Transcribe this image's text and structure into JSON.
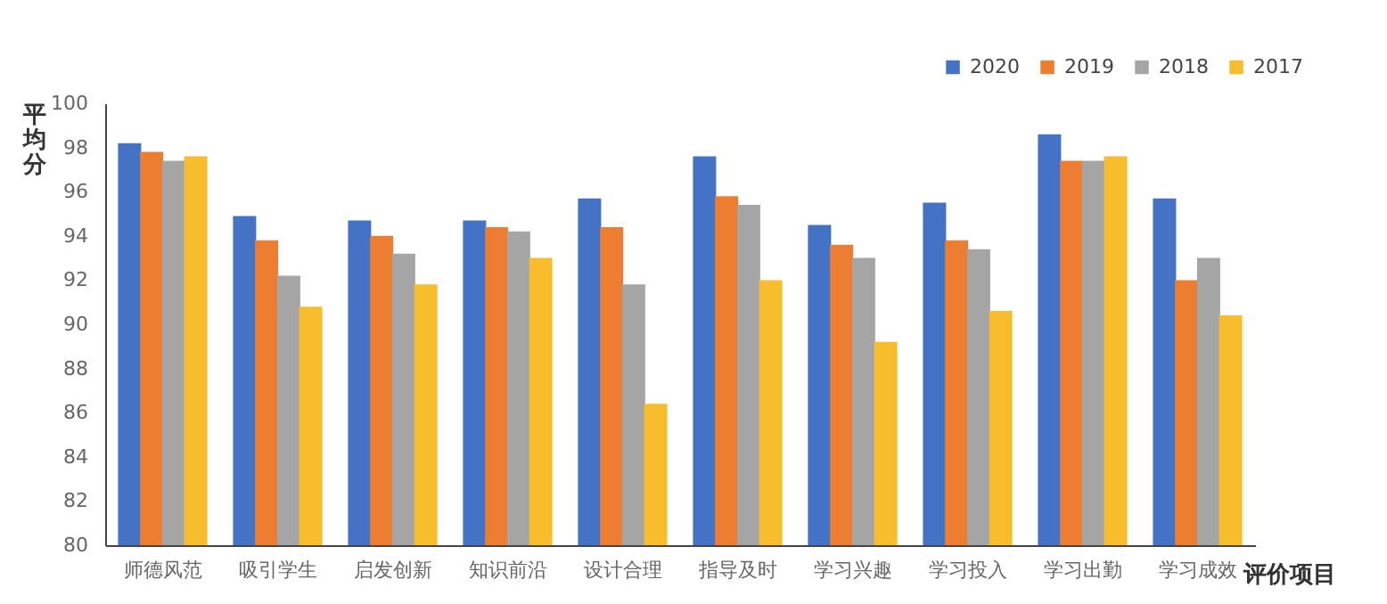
{
  "chart_data": {
    "type": "bar",
    "xlabel": "评价项目",
    "ylabel": "平均分",
    "categories": [
      "师德风范",
      "吸引学生",
      "启发创新",
      "知识前沿",
      "设计合理",
      "指导及时",
      "学习兴趣",
      "学习投入",
      "学习出勤",
      "学习成效"
    ],
    "series": [
      {
        "name": "2020",
        "color": "#4472c4",
        "values": [
          98.2,
          94.9,
          94.7,
          94.7,
          95.7,
          97.6,
          94.5,
          95.5,
          98.6,
          95.7
        ]
      },
      {
        "name": "2019",
        "color": "#ed7d31",
        "values": [
          97.8,
          93.8,
          94.0,
          94.4,
          94.4,
          95.8,
          93.6,
          93.8,
          97.4,
          92.0
        ]
      },
      {
        "name": "2018",
        "color": "#a5a5a5",
        "values": [
          97.4,
          92.2,
          93.2,
          94.2,
          91.8,
          95.4,
          93.0,
          93.4,
          97.4,
          93.0
        ]
      },
      {
        "name": "2017",
        "color": "#f8bd2c",
        "values": [
          97.6,
          90.8,
          91.8,
          93.0,
          86.4,
          92.0,
          89.2,
          90.6,
          97.6,
          90.4
        ]
      }
    ],
    "ylim": [
      80,
      100
    ],
    "yticks": [
      80,
      82,
      84,
      86,
      88,
      90,
      92,
      94,
      96,
      98,
      100
    ],
    "grid": false,
    "legend": "top right"
  }
}
